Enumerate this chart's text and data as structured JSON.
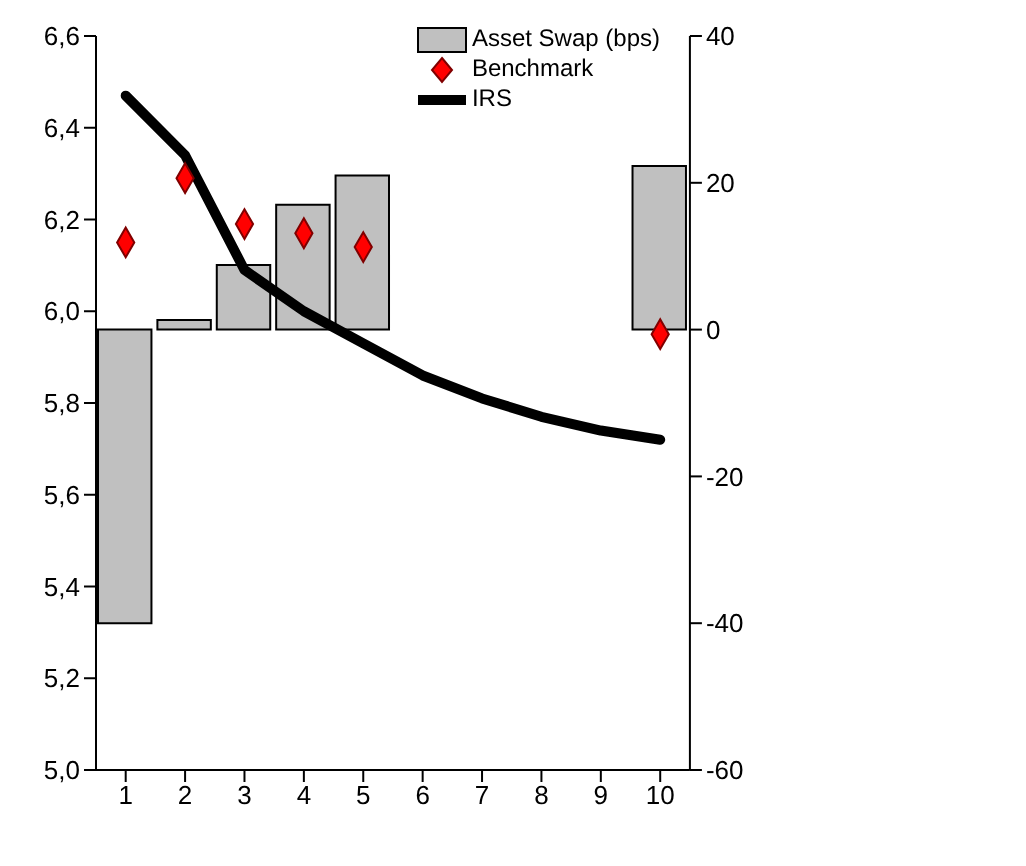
{
  "chart_data": {
    "type": "bar",
    "categories": [
      "1",
      "2",
      "3",
      "4",
      "5",
      "6",
      "7",
      "8",
      "9",
      "10"
    ],
    "series": [
      {
        "name": "Asset Swap (bps)",
        "axis": "y2",
        "color": "#c0c0c0",
        "values": [
          -40,
          1.3,
          8.8,
          17,
          21,
          null,
          null,
          null,
          null,
          22.3
        ]
      },
      {
        "name": "Benchmark",
        "type": "scatter",
        "marker": "diamond",
        "color": "#ff0000",
        "values": [
          6.15,
          6.29,
          6.19,
          6.17,
          6.14,
          null,
          null,
          null,
          null,
          5.95
        ]
      },
      {
        "name": "IRS",
        "type": "line",
        "marker": "none",
        "color": "#000000",
        "values": [
          6.47,
          6.34,
          6.09,
          6.0,
          5.93,
          5.86,
          5.81,
          5.77,
          5.74,
          5.72
        ]
      }
    ],
    "ylim": [
      5.0,
      6.6
    ],
    "yticks": [
      {
        "value": 5.0,
        "label": "5,0"
      },
      {
        "value": 5.2,
        "label": "5,2"
      },
      {
        "value": 5.4,
        "label": "5,4"
      },
      {
        "value": 5.6,
        "label": "5,6"
      },
      {
        "value": 5.8,
        "label": "5,8"
      },
      {
        "value": 6.0,
        "label": "6,0"
      },
      {
        "value": 6.2,
        "label": "6,2"
      },
      {
        "value": 6.4,
        "label": "6,4"
      },
      {
        "value": 6.6,
        "label": "6,6"
      }
    ],
    "y2lim": [
      -60,
      40
    ],
    "y2ticks": [
      -60,
      -40,
      -20,
      0,
      20,
      40
    ],
    "grid": false,
    "legend": "top right"
  }
}
